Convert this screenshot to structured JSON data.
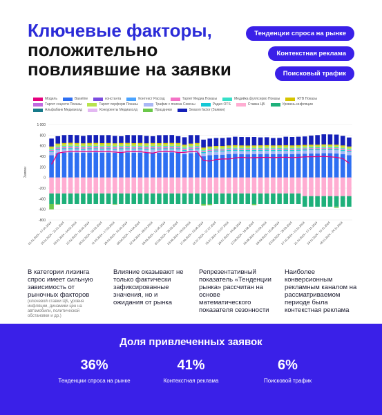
{
  "header": {
    "title_lines": [
      "Ключевые факторы,",
      "положительно",
      "повлиявшие на заявки"
    ],
    "pills": [
      "Тенденции спроса на рынке",
      "Контекстная реклама",
      "Поисковый трафик"
    ]
  },
  "legend": [
    {
      "name": "Модель",
      "color": "#e6007e"
    },
    {
      "name": "Baseline",
      "color": "#2e6ff2"
    },
    {
      "name": "константа",
      "color": "#7b4de0"
    },
    {
      "name": "Контекст Расход",
      "color": "#4aa3ff"
    },
    {
      "name": "Таргет Медиа Показы",
      "color": "#f472c6"
    },
    {
      "name": "Медийка фуллсерво Показы",
      "color": "#36e0c8"
    },
    {
      "name": "RTB Показы",
      "color": "#d6c400"
    },
    {
      "name": "Таргет соцсети Показы",
      "color": "#c06be0"
    },
    {
      "name": "Таргет перформ Показы",
      "color": "#b7e34d"
    },
    {
      "name": "Трафик с поиска Севсны",
      "color": "#a9b8f5"
    },
    {
      "name": "Радио OTS",
      "color": "#14c8d6"
    },
    {
      "name": "Ставка ЦБ",
      "color": "#ffadd2"
    },
    {
      "name": "Уровень инфляции",
      "color": "#1eb07a"
    },
    {
      "name": "Альфабанк Медиахолд",
      "color": "#177a8a"
    },
    {
      "name": "Конкуренты Медиахолд",
      "color": "#e3b8f2"
    },
    {
      "name": "Праздники",
      "color": "#6bc84a"
    },
    {
      "name": "Season factor (Заявки)",
      "color": "#1420b8"
    }
  ],
  "chart_data": {
    "type": "bar",
    "stacked": true,
    "ylabel": "Заявки",
    "ylim": [
      -800,
      1000
    ],
    "yticks": [
      -800,
      -600,
      -400,
      -200,
      0,
      200,
      400,
      600,
      800,
      1000
    ],
    "ytick_labels": [
      "-800",
      "-600",
      "-400",
      "-200",
      "0",
      "200",
      "400",
      "600",
      "800",
      "1 000"
    ],
    "xtick_labels": [
      "01.01.2024 - 07.01.2024",
      "15.01.2024 - 21.01.2024",
      "29.01.2024 - 04.02.2024",
      "12.02.2024 - 18.02.2024",
      "26.02.2024 - 03.03.2024",
      "11.03.2024 - 17.03.2024",
      "25.03.2024 - 31.03.2024",
      "08.04.2024 - 14.04.2024",
      "22.04.2024 - 28.04.2024",
      "06.05.2024 - 12.05.2024",
      "20.05.2024 - 26.05.2024",
      "03.06.2024 - 09.06.2024",
      "17.06.2024 - 23.06.2024",
      "01.07.2024 - 07.07.2024",
      "15.07.2024 - 21.07.2024",
      "29.07.2024 - 04.08.2024",
      "12.08.2024 - 18.08.2024",
      "26.08.2024 - 01.09.2024",
      "09.09.2024 - 15.09.2024",
      "23.09.2024 - 29.09.2024",
      "07.10.2024 - 13.10.2024",
      "21.10.2024 - 27.10.2024",
      "04.11.2024 - 10.11.2024",
      "18.11.2024 - 24.11.2024"
    ],
    "num_bars": 48,
    "positive_series": [
      {
        "name": "Baseline",
        "color": "#2e6ff2",
        "values": [
          420,
          460,
          470,
          475,
          470,
          465,
          470,
          472,
          468,
          470,
          465,
          470,
          472,
          468,
          470,
          465,
          470,
          468,
          470,
          472,
          470,
          440,
          460,
          470,
          400,
          420,
          430,
          430,
          440,
          445,
          440,
          438,
          440,
          442,
          445,
          440,
          442,
          445,
          440,
          445,
          450,
          455,
          455,
          460,
          458,
          455,
          440,
          420
        ]
      },
      {
        "name": "Трафик с поиска Севсны",
        "color": "#a9b8f5",
        "values": [
          60,
          60,
          60,
          60,
          60,
          60,
          60,
          60,
          60,
          60,
          60,
          60,
          60,
          60,
          60,
          60,
          60,
          60,
          60,
          60,
          60,
          60,
          60,
          60,
          60,
          60,
          60,
          60,
          60,
          60,
          60,
          60,
          60,
          60,
          60,
          60,
          60,
          60,
          60,
          60,
          60,
          60,
          60,
          60,
          60,
          60,
          60,
          60
        ]
      },
      {
        "name": "Радио OTS",
        "color": "#14c8d6",
        "values": [
          20,
          20,
          20,
          20,
          20,
          20,
          20,
          20,
          20,
          20,
          20,
          20,
          20,
          20,
          20,
          20,
          20,
          20,
          20,
          20,
          20,
          20,
          20,
          20,
          20,
          20,
          20,
          20,
          20,
          20,
          20,
          20,
          20,
          20,
          20,
          20,
          20,
          20,
          20,
          20,
          20,
          20,
          20,
          20,
          20,
          20,
          20,
          20
        ]
      },
      {
        "name": "Таргет Медиа Показы",
        "color": "#f472c6",
        "values": [
          20,
          25,
          25,
          25,
          25,
          25,
          25,
          25,
          25,
          25,
          25,
          25,
          25,
          25,
          25,
          25,
          25,
          25,
          25,
          25,
          25,
          25,
          25,
          25,
          20,
          20,
          20,
          20,
          20,
          20,
          20,
          20,
          20,
          20,
          20,
          20,
          20,
          20,
          20,
          20,
          20,
          20,
          20,
          20,
          20,
          20,
          20,
          20
        ]
      },
      {
        "name": "Медийка фуллсерво Показы",
        "color": "#36e0c8",
        "values": [
          15,
          20,
          20,
          20,
          20,
          20,
          20,
          20,
          20,
          20,
          20,
          20,
          20,
          20,
          20,
          20,
          20,
          20,
          20,
          20,
          20,
          20,
          20,
          20,
          15,
          15,
          15,
          15,
          15,
          15,
          15,
          15,
          15,
          15,
          15,
          15,
          15,
          15,
          15,
          15,
          15,
          15,
          15,
          15,
          15,
          15,
          15,
          15
        ]
      },
      {
        "name": "Таргет перформ Показы",
        "color": "#b7e34d",
        "values": [
          30,
          35,
          35,
          35,
          35,
          35,
          35,
          35,
          35,
          35,
          35,
          35,
          35,
          35,
          35,
          35,
          35,
          35,
          35,
          35,
          35,
          35,
          35,
          35,
          30,
          30,
          30,
          30,
          30,
          30,
          30,
          30,
          30,
          30,
          30,
          30,
          30,
          30,
          30,
          30,
          30,
          30,
          30,
          30,
          30,
          30,
          30,
          30
        ]
      },
      {
        "name": "RTB Показы",
        "color": "#d6c400",
        "values": [
          20,
          20,
          20,
          20,
          20,
          20,
          20,
          20,
          20,
          20,
          20,
          20,
          20,
          20,
          20,
          20,
          20,
          20,
          20,
          20,
          20,
          20,
          20,
          20,
          20,
          20,
          20,
          20,
          20,
          20,
          20,
          20,
          20,
          20,
          20,
          20,
          20,
          20,
          20,
          20,
          20,
          20,
          20,
          20,
          20,
          20,
          20,
          20
        ]
      },
      {
        "name": "Season factor (Заявки)",
        "color": "#1420b8",
        "values": [
          150,
          140,
          150,
          150,
          150,
          140,
          150,
          150,
          150,
          150,
          140,
          130,
          150,
          150,
          150,
          140,
          130,
          150,
          150,
          150,
          130,
          140,
          160,
          150,
          150,
          150,
          150,
          150,
          150,
          160,
          160,
          160,
          160,
          150,
          150,
          140,
          140,
          160,
          160,
          160,
          160,
          170,
          180,
          190,
          190,
          190,
          180,
          170
        ]
      }
    ],
    "negative_series": [
      {
        "name": "Ставка ЦБ",
        "color": "#ffadd2",
        "values": [
          -300,
          -300,
          -300,
          -300,
          -300,
          -300,
          -300,
          -300,
          -300,
          -300,
          -300,
          -300,
          -300,
          -300,
          -300,
          -300,
          -300,
          -300,
          -300,
          -300,
          -300,
          -300,
          -300,
          -300,
          -300,
          -300,
          -300,
          -300,
          -300,
          -300,
          -300,
          -300,
          -300,
          -300,
          -300,
          -300,
          -300,
          -300,
          -300,
          -300,
          -350,
          -350,
          -350,
          -350,
          -350,
          -350,
          -350,
          -350
        ]
      },
      {
        "name": "Уровень инфляции",
        "color": "#1eb07a",
        "values": [
          -200,
          -200,
          -200,
          -200,
          -200,
          -200,
          -200,
          -200,
          -200,
          -200,
          -200,
          -200,
          -200,
          -200,
          -200,
          -200,
          -200,
          -200,
          -200,
          -200,
          -200,
          -200,
          -200,
          -200,
          -200,
          -200,
          -200,
          -200,
          -200,
          -200,
          -200,
          -200,
          -200,
          -200,
          -200,
          -200,
          -200,
          -200,
          -200,
          -200,
          -200,
          -200,
          -200,
          -200,
          -200,
          -200,
          -200,
          -200
        ]
      },
      {
        "name": "Праздники",
        "color": "#6bc84a",
        "values": [
          -100,
          -10,
          0,
          0,
          0,
          0,
          0,
          0,
          0,
          0,
          -10,
          0,
          0,
          0,
          0,
          0,
          0,
          0,
          0,
          0,
          0,
          0,
          0,
          0,
          -30,
          -20,
          0,
          0,
          0,
          0,
          0,
          0,
          -20,
          0,
          0,
          0,
          0,
          0,
          0,
          0,
          0,
          0,
          0,
          0,
          0,
          -20,
          0,
          0
        ]
      }
    ],
    "model_line": {
      "name": "Модель",
      "color": "#e6007e",
      "values": [
        250,
        460,
        480,
        490,
        495,
        488,
        490,
        492,
        486,
        490,
        480,
        470,
        488,
        492,
        490,
        470,
        460,
        488,
        492,
        494,
        470,
        475,
        490,
        488,
        320,
        310,
        340,
        350,
        350,
        370,
        380,
        372,
        375,
        378,
        380,
        375,
        380,
        382,
        376,
        380,
        390,
        392,
        394,
        398,
        390,
        380,
        360,
        270
      ]
    }
  },
  "facts": [
    {
      "text": "В категории лизинга спрос имеет сильную зависимость от рыночных факторов",
      "note": "(ключевой ставки ЦБ, уровня инфляции, динамики цен на автомобили, политической обстановки и др.)"
    },
    {
      "text": "Влияние оказывают не только фактически зафиксированные значения, но и ожидания от рынка",
      "note": ""
    },
    {
      "text": "Репрезентативный показатель «Тенденции рынка» рассчитан на основе математического показателя сезонности",
      "note": ""
    },
    {
      "text": "Наиболее конверсионным рекламным каналом на рассматриваемом периоде была контекстная реклама",
      "note": ""
    }
  ],
  "share": {
    "title": "Доля привлеченных заявок",
    "items": [
      {
        "pct": "36%",
        "label": "Тенденции спроса на рынке"
      },
      {
        "pct": "41%",
        "label": "Контекстная реклама"
      },
      {
        "pct": "6%",
        "label": "Поисковой трафик"
      }
    ]
  }
}
